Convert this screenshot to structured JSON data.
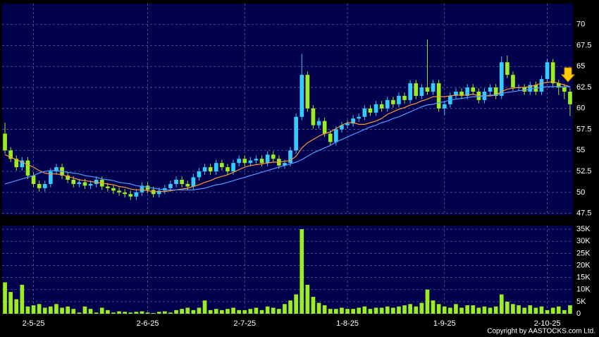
{
  "chart_data": [
    {
      "type": "candlestick",
      "up_color": "#33ccff",
      "down_color": "#99ee22",
      "open": [
        57,
        55,
        54,
        53,
        53.8,
        52,
        51,
        50.5,
        51,
        52.5,
        53,
        52,
        51.5,
        51,
        51.2,
        50.8,
        51,
        51.5,
        50.7,
        50.5,
        50.2,
        50,
        49.8,
        49.5,
        50,
        50.8,
        50.3,
        49.8,
        50.2,
        50.5,
        51,
        51.5,
        51,
        50.7,
        51.8,
        52.5,
        53,
        52.5,
        53.5,
        53,
        52.5,
        53.5,
        54,
        53.5,
        53.8,
        54,
        53.5,
        54.5,
        54,
        53.2,
        53.5,
        55,
        59,
        64,
        60,
        58,
        58.5,
        57,
        56,
        57.5,
        58,
        58.2,
        58.8,
        59,
        60,
        59.5,
        60.5,
        60,
        61,
        60.5,
        61.5,
        61,
        63,
        61.5,
        62.5,
        62,
        63,
        60,
        60.5,
        61.5,
        62,
        61.5,
        62.5,
        62,
        61,
        62,
        62.5,
        61.5,
        65.5,
        64,
        62.5,
        62.5,
        62,
        62.8,
        62,
        63.5,
        65.5,
        63,
        62.5,
        62
      ],
      "high": [
        58.3,
        55.4,
        54.4,
        54.2,
        54.2,
        52.4,
        51.4,
        51.4,
        52.9,
        53.4,
        53.4,
        52.4,
        51.9,
        51.6,
        51.6,
        51.4,
        51.9,
        51.9,
        51.1,
        50.9,
        50.6,
        50.4,
        50.2,
        50.4,
        51.2,
        51.2,
        50.7,
        50.6,
        50.9,
        51.4,
        51.9,
        51.9,
        51.4,
        52.2,
        52.9,
        53.4,
        53.4,
        53.9,
        53.9,
        53.4,
        53.9,
        54.4,
        54.4,
        54.2,
        54.4,
        54.4,
        54.9,
        54.9,
        54.4,
        53.9,
        55.4,
        59.4,
        66.5,
        64.4,
        60.4,
        58.9,
        58.9,
        57.4,
        57.9,
        58.4,
        58.6,
        59.2,
        59.4,
        60.4,
        60.4,
        60.9,
        60.9,
        61.4,
        61.4,
        61.9,
        61.9,
        63.4,
        63.4,
        62.9,
        68.2,
        63.4,
        63.4,
        60.9,
        61.9,
        62.4,
        62.4,
        62.9,
        62.9,
        62.4,
        62.4,
        62.9,
        62.9,
        66.2,
        66.3,
        64.4,
        62.9,
        62.9,
        63.2,
        63.2,
        63.9,
        65.9,
        65.9,
        63.4,
        62.9,
        62.4
      ],
      "low": [
        54.6,
        53.6,
        52.6,
        52.6,
        51.6,
        50.6,
        50.1,
        50.1,
        50.6,
        52.1,
        51.6,
        51.1,
        50.6,
        50.6,
        50.4,
        50.4,
        50.6,
        50.3,
        50.1,
        49.8,
        49.6,
        49.4,
        49.1,
        49.1,
        49.6,
        49.9,
        49.4,
        49.4,
        49.8,
        50.1,
        50.6,
        50.6,
        50.3,
        50.3,
        51.4,
        52.1,
        52.1,
        52.1,
        52.6,
        52.1,
        52.1,
        53.1,
        53.1,
        53.1,
        53.4,
        53.1,
        53.1,
        53.6,
        52.8,
        52.8,
        53.1,
        54.6,
        58.6,
        59.6,
        57.6,
        57.6,
        56.6,
        55.6,
        55.6,
        57.1,
        57.6,
        57.8,
        58.4,
        58.6,
        59.1,
        59.1,
        59.6,
        59.6,
        60.1,
        60.1,
        60.6,
        60.6,
        61.1,
        61.1,
        61.6,
        61.6,
        59.6,
        59.2,
        60.1,
        61.1,
        61.1,
        61.1,
        61.6,
        60.6,
        60.6,
        61.6,
        61.1,
        61.1,
        63.6,
        62.1,
        62.1,
        61.6,
        61.6,
        61.6,
        61.6,
        63.1,
        62.6,
        61.6,
        61.1,
        59.1
      ],
      "close": [
        55,
        54,
        53,
        53.8,
        52,
        51,
        50.5,
        51,
        52.5,
        53,
        52,
        51.5,
        51,
        51.2,
        50.8,
        51,
        51.5,
        50.7,
        50.5,
        50.2,
        50,
        49.8,
        49.5,
        50,
        50.8,
        50.3,
        49.8,
        50.2,
        50.5,
        51,
        51.5,
        51,
        50.7,
        51.8,
        52.5,
        53,
        52.5,
        53.5,
        53,
        52.5,
        53.5,
        54,
        53.5,
        53.8,
        54,
        53.5,
        54.5,
        54,
        53.2,
        53.5,
        55,
        59,
        64,
        60,
        58,
        58.5,
        57,
        56,
        57.5,
        58,
        58.2,
        58.8,
        59,
        60,
        59.5,
        60.5,
        60,
        61,
        60.5,
        61.5,
        61,
        63,
        61.5,
        62.5,
        62,
        63,
        60,
        60.5,
        61.5,
        62,
        61.5,
        62.5,
        62,
        61,
        62,
        62.5,
        61.5,
        65.5,
        64,
        62.5,
        62.5,
        62,
        62.8,
        62,
        63.5,
        65.5,
        63,
        62.5,
        62,
        60.5
      ],
      "series": [
        {
          "color": "#ff9933",
          "values": [
            54.5,
            54.2,
            53.9,
            53.6,
            53.3,
            53,
            52.6,
            52.3,
            52.2,
            52.2,
            52.1,
            51.9,
            51.7,
            51.5,
            51.4,
            51.3,
            51.2,
            51.1,
            51,
            50.9,
            50.7,
            50.6,
            50.4,
            50.3,
            50.3,
            50.2,
            50.1,
            50.1,
            50.1,
            50.2,
            50.3,
            50.4,
            50.5,
            50.7,
            50.9,
            51.2,
            51.4,
            51.7,
            51.9,
            52.1,
            52.4,
            52.7,
            53,
            53.2,
            53.3,
            53.4,
            53.5,
            53.6,
            53.6,
            53.7,
            53.8,
            54.3,
            55.3,
            55.9,
            56.3,
            56.7,
            57,
            57.2,
            57.6,
            58,
            58.3,
            58.3,
            58.1,
            58.1,
            58.3,
            58.5,
            58.8,
            59.3,
            59.6,
            59.9,
            60.1,
            60.4,
            60.6,
            60.9,
            61.1,
            61.4,
            61.4,
            61.4,
            61.5,
            61.6,
            61.6,
            61.6,
            61.7,
            61.5,
            61.5,
            61.5,
            61.6,
            62,
            62.3,
            62.4,
            62.5,
            62.5,
            62.6,
            62.8,
            63,
            63.1,
            63.2,
            63,
            62.8,
            62.6
          ]
        },
        {
          "color": "#5599ff",
          "values": [
            51,
            51.2,
            51.4,
            51.6,
            51.8,
            52,
            52.3,
            52.5,
            52.6,
            52.6,
            52.5,
            52.4,
            52.3,
            52.2,
            52,
            51.9,
            51.8,
            51.6,
            51.5,
            51.4,
            51.2,
            51.1,
            51,
            50.8,
            50.7,
            50.6,
            50.5,
            50.4,
            50.3,
            50.3,
            50.3,
            50.3,
            50.3,
            50.3,
            50.4,
            50.5,
            50.7,
            50.9,
            51,
            51.2,
            51.4,
            51.6,
            51.8,
            52,
            52.2,
            52.4,
            52.6,
            52.8,
            53,
            53.2,
            53.4,
            53.6,
            53.9,
            54.3,
            54.7,
            55,
            55.3,
            55.6,
            56,
            56.3,
            56.6,
            56.9,
            57.2,
            57.5,
            57.8,
            58,
            58.3,
            58.5,
            58.8,
            59,
            59.3,
            59.6,
            59.9,
            60.2,
            60.4,
            60.5,
            60.7,
            60.8,
            61,
            61.1,
            61.2,
            61.3,
            61.4,
            61.4,
            61.5,
            61.6,
            61.6,
            61.8,
            61.9,
            62,
            62.1,
            62.2,
            62.3,
            62.4,
            62.5,
            62.6,
            62.6,
            62.6,
            62.6,
            62.6
          ]
        }
      ],
      "ylim": [
        47.3,
        72.5
      ],
      "yticks": [
        47.5,
        50,
        52.5,
        55,
        57.5,
        60,
        62.5,
        65,
        67.5,
        70
      ],
      "grid": true
    },
    {
      "type": "bar",
      "color": "#99ee22",
      "categories": [
        null,
        null,
        null,
        null,
        null,
        "2-5-25",
        null,
        null,
        null,
        null,
        null,
        null,
        null,
        null,
        null,
        null,
        null,
        null,
        null,
        null,
        null,
        null,
        null,
        null,
        null,
        "2-6-25",
        null,
        null,
        null,
        null,
        null,
        null,
        null,
        null,
        null,
        null,
        null,
        null,
        null,
        null,
        null,
        null,
        "2-7-25",
        null,
        null,
        null,
        null,
        null,
        null,
        null,
        null,
        null,
        null,
        null,
        null,
        null,
        null,
        null,
        null,
        null,
        "1-8-25",
        null,
        null,
        null,
        null,
        null,
        null,
        null,
        null,
        null,
        null,
        null,
        null,
        null,
        null,
        null,
        null,
        "1-9-25",
        null,
        null,
        null,
        null,
        null,
        null,
        null,
        null,
        null,
        null,
        null,
        null,
        null,
        null,
        null,
        null,
        null,
        "2-10-25",
        null,
        null,
        null,
        null
      ],
      "values": [
        13000,
        9000,
        6000,
        12000,
        3000,
        3500,
        4000,
        2500,
        3000,
        4000,
        2500,
        3000,
        2000,
        500,
        3000,
        2000,
        500,
        2500,
        1500,
        500,
        1000,
        800,
        500,
        800,
        1000,
        500,
        300,
        800,
        1000,
        500,
        1500,
        2000,
        2500,
        1500,
        2500,
        5500,
        1500,
        2000,
        1500,
        2000,
        2500,
        1500,
        1500,
        2000,
        2500,
        1500,
        3000,
        2500,
        2000,
        4000,
        5500,
        8000,
        35000,
        12000,
        7000,
        4500,
        3500,
        2000,
        2000,
        2500,
        2000,
        2000,
        2500,
        3000,
        2000,
        2500,
        2500,
        3000,
        2500,
        3000,
        3500,
        4000,
        3000,
        4500,
        10000,
        5500,
        4000,
        3000,
        2500,
        4000,
        2500,
        3500,
        3500,
        2500,
        3000,
        2500,
        3000,
        8000,
        5000,
        4000,
        3500,
        2500,
        3500,
        2500,
        3000,
        1500,
        2500,
        3000,
        1500,
        3500
      ],
      "ylim": [
        0,
        36500
      ],
      "yticks": [
        0,
        {
          "value": 5000,
          "label": "5K"
        },
        {
          "value": 10000,
          "label": "10K"
        },
        {
          "value": 15000,
          "label": "15K"
        },
        {
          "value": 20000,
          "label": "20K"
        },
        {
          "value": 25000,
          "label": "25K"
        },
        {
          "value": 30000,
          "label": "30K"
        },
        {
          "value": 35000,
          "label": "35K"
        }
      ],
      "grid": true,
      "copyright": "Copyright by AASTOCKS.com Ltd."
    }
  ]
}
